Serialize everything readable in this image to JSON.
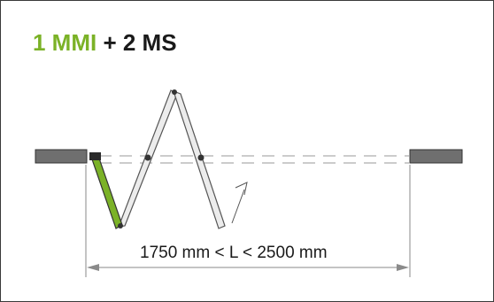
{
  "title": {
    "highlight": "1 MMI",
    "rest": "+ 2 MS"
  },
  "dimension": {
    "label": "1750 mm < L < 2500 mm"
  },
  "colors": {
    "accent": "#7bb227",
    "panel": "#e6e6e6",
    "jamb": "#6f6f6f",
    "line": "#555555",
    "border": "#3a3a3a"
  }
}
